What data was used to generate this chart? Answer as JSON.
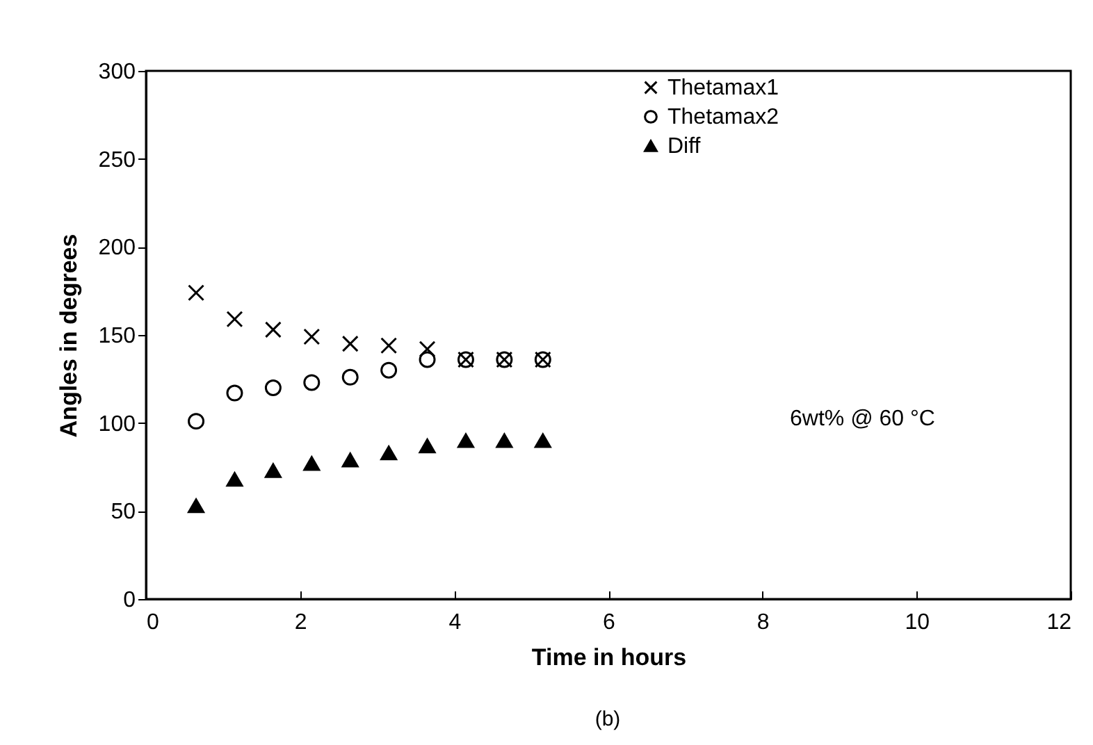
{
  "chart_data": {
    "type": "scatter",
    "xlabel": "Time in hours",
    "ylabel": "Angles in degrees",
    "x": [
      0.65,
      1.15,
      1.65,
      2.15,
      2.65,
      3.15,
      3.65,
      4.15,
      4.65,
      5.15
    ],
    "series": [
      {
        "name": "Thetamax1",
        "color": "#000000",
        "marker": "cross",
        "values": [
          174,
          159,
          153,
          149,
          145,
          144,
          142,
          136,
          136,
          136
        ]
      },
      {
        "name": "Thetamax2",
        "color": "#000000",
        "marker": "circle",
        "values": [
          101,
          117,
          120,
          123,
          126,
          130,
          136,
          136,
          136,
          136
        ]
      },
      {
        "name": "Diff",
        "color": "#000000",
        "marker": "triangle",
        "values": [
          53,
          68,
          73,
          77,
          79,
          83,
          87,
          90,
          90,
          90
        ]
      }
    ],
    "xlim": [
      0,
      12
    ],
    "xticks": [
      0,
      2,
      4,
      6,
      8,
      10,
      12
    ],
    "ylim": [
      0,
      300
    ],
    "yticks": [
      0,
      50,
      100,
      150,
      200,
      250,
      300
    ],
    "grid": false,
    "legend": "top right",
    "annotations": [
      "6wt% @ 60 °C",
      "(b)"
    ]
  }
}
